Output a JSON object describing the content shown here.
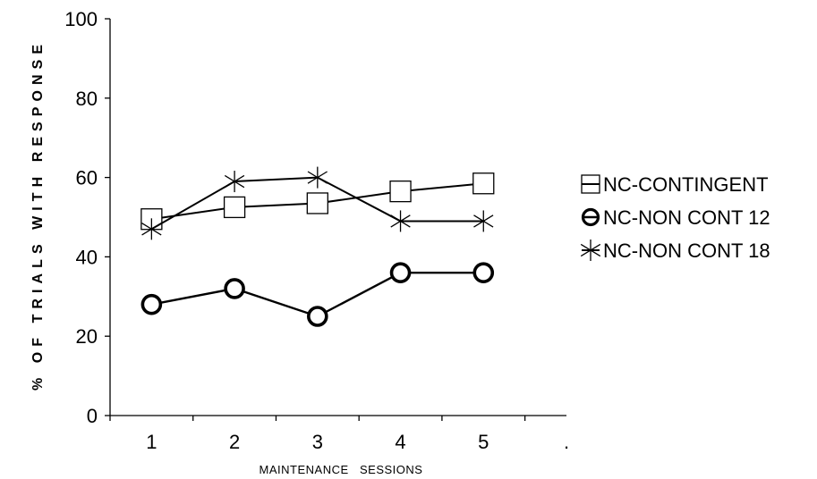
{
  "chart_data": {
    "type": "line",
    "title": "",
    "xlabel": "MAINTENANCE   SESSIONS",
    "ylabel": "% OF TRIALS WITH RESPONSE",
    "ylim": [
      0,
      100
    ],
    "yticks": [
      "0",
      "20",
      "40",
      "60",
      "80",
      "100"
    ],
    "xticks": [
      "1",
      "2",
      "3",
      "4",
      "5",
      "."
    ],
    "grid": false,
    "legend_position": "right",
    "x": [
      1,
      2,
      3,
      4,
      5
    ],
    "series": [
      {
        "name": "NC-CONTINGENT",
        "marker": "square",
        "values": [
          49.5,
          52.5,
          53.5,
          56.5,
          58.5
        ]
      },
      {
        "name": "NC-NON CONT 12",
        "marker": "circle",
        "values": [
          28,
          32,
          25,
          36,
          36
        ]
      },
      {
        "name": "NC-NON CONT 18",
        "marker": "asterisk",
        "values": [
          47,
          59,
          60,
          49,
          49
        ]
      }
    ]
  }
}
